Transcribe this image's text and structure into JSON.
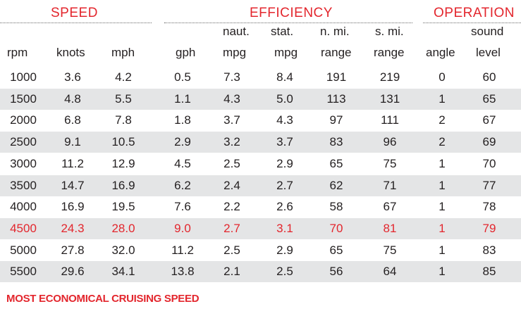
{
  "groups": {
    "speed": "SPEED",
    "efficiency": "EFFICIENCY",
    "operation": "OPERATION"
  },
  "headers": {
    "rpm": {
      "top": "",
      "bottom": "rpm"
    },
    "knots": {
      "top": "",
      "bottom": "knots"
    },
    "mph": {
      "top": "",
      "bottom": "mph"
    },
    "gph": {
      "top": "",
      "bottom": "gph"
    },
    "naut_mpg": {
      "top": "naut.",
      "bottom": "mpg"
    },
    "stat_mpg": {
      "top": "stat.",
      "bottom": "mpg"
    },
    "nmi_range": {
      "top": "n. mi.",
      "bottom": "range"
    },
    "smi_range": {
      "top": "s. mi.",
      "bottom": "range"
    },
    "angle": {
      "top": "",
      "bottom": "angle"
    },
    "sound": {
      "top": "sound",
      "bottom": "level"
    }
  },
  "rows": [
    [
      "1000",
      "3.6",
      "4.2",
      "0.5",
      "7.3",
      "8.4",
      "191",
      "219",
      "0",
      "60"
    ],
    [
      "1500",
      "4.8",
      "5.5",
      "1.1",
      "4.3",
      "5.0",
      "113",
      "131",
      "1",
      "65"
    ],
    [
      "2000",
      "6.8",
      "7.8",
      "1.8",
      "3.7",
      "4.3",
      "97",
      "111",
      "2",
      "67"
    ],
    [
      "2500",
      "9.1",
      "10.5",
      "2.9",
      "3.2",
      "3.7",
      "83",
      "96",
      "2",
      "69"
    ],
    [
      "3000",
      "11.2",
      "12.9",
      "4.5",
      "2.5",
      "2.9",
      "65",
      "75",
      "1",
      "70"
    ],
    [
      "3500",
      "14.7",
      "16.9",
      "6.2",
      "2.4",
      "2.7",
      "62",
      "71",
      "1",
      "77"
    ],
    [
      "4000",
      "16.9",
      "19.5",
      "7.6",
      "2.2",
      "2.6",
      "58",
      "67",
      "1",
      "78"
    ],
    [
      "4500",
      "24.3",
      "28.0",
      "9.0",
      "2.7",
      "3.1",
      "70",
      "81",
      "1",
      "79"
    ],
    [
      "5000",
      "27.8",
      "32.0",
      "11.2",
      "2.5",
      "2.9",
      "65",
      "75",
      "1",
      "83"
    ],
    [
      "5500",
      "29.6",
      "34.1",
      "13.8",
      "2.1",
      "2.5",
      "56",
      "64",
      "1",
      "85"
    ]
  ],
  "highlight_row_index": 7,
  "footer": "MOST ECONOMICAL CRUISING SPEED",
  "colors": {
    "accent": "#e3262d",
    "text": "#231f20",
    "row_shade": "#e4e5e6"
  }
}
